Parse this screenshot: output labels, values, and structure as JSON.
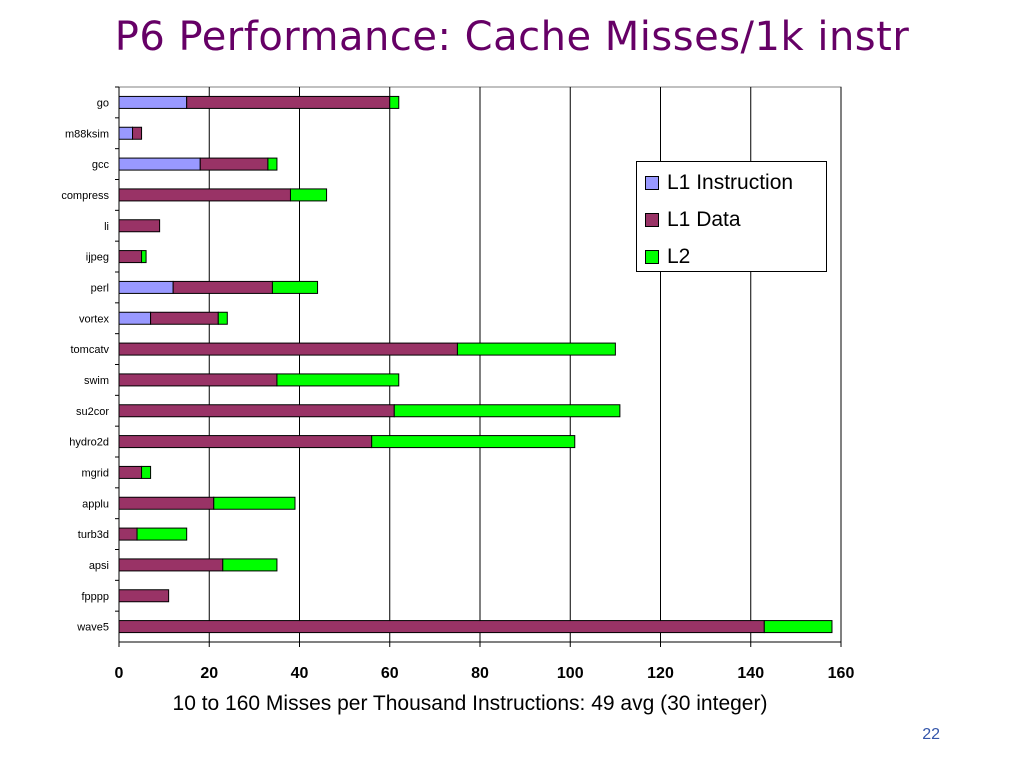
{
  "slide": {
    "title": "P6 Performance: Cache Misses/1k instr",
    "caption": "10 to 160 Misses per Thousand Instructions: 49 avg (30 integer)",
    "page_number": "22"
  },
  "colors": {
    "l1_instruction": "#9999ff",
    "l1_data": "#993366",
    "l2": "#00ff00",
    "title": "#660066"
  },
  "chart_data": {
    "type": "bar",
    "orientation": "horizontal",
    "stacked": true,
    "title": "",
    "xlabel": "",
    "ylabel": "",
    "xlim": [
      0,
      160
    ],
    "xticks": [
      0,
      20,
      40,
      60,
      80,
      100,
      120,
      140,
      160
    ],
    "grid": true,
    "legend_position": "right",
    "categories": [
      "go",
      "m88ksim",
      "gcc",
      "compress",
      "li",
      "ijpeg",
      "perl",
      "vortex",
      "tomcatv",
      "swim",
      "su2cor",
      "hydro2d",
      "mgrid",
      "applu",
      "turb3d",
      "apsi",
      "fpppp",
      "wave5"
    ],
    "series": [
      {
        "name": "L1 Instruction",
        "values": [
          15,
          3,
          18,
          0,
          0,
          0,
          12,
          7,
          0,
          0,
          0,
          0,
          0,
          0,
          0,
          0,
          0,
          0
        ]
      },
      {
        "name": "L1 Data",
        "values": [
          45,
          2,
          15,
          38,
          9,
          5,
          22,
          15,
          75,
          35,
          61,
          56,
          5,
          21,
          4,
          23,
          11,
          143
        ]
      },
      {
        "name": "L2",
        "values": [
          2,
          0,
          2,
          8,
          0,
          1,
          10,
          2,
          35,
          27,
          50,
          45,
          2,
          18,
          11,
          12,
          0,
          15
        ]
      }
    ]
  }
}
